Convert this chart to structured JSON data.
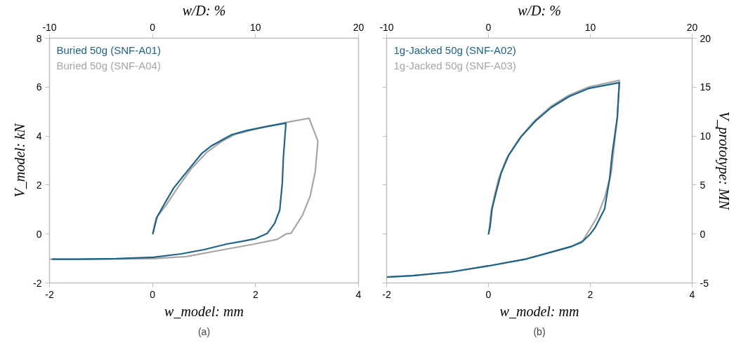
{
  "chart_data": [
    {
      "type": "line",
      "xlabel": "w_model: mm",
      "ylabel": "V_model: kN",
      "x2label": "w/D: %",
      "annotations": [
        "(a)"
      ],
      "legend": "top left",
      "xlim": [
        -2,
        4
      ],
      "xticks": [
        -2,
        0,
        2,
        4
      ],
      "ylim": [
        -2,
        8
      ],
      "yticks": [
        -2,
        0,
        2,
        4,
        6,
        8
      ],
      "x2lim": [
        -10,
        20
      ],
      "x2ticks": [
        -10,
        0,
        10,
        20
      ],
      "series": [
        {
          "name": "Buried 50g (SNF-A04)",
          "color": "#a6a6a6",
          "x": [
            0,
            0.07,
            0.26,
            0.51,
            0.75,
            1.05,
            1.34,
            1.59,
            1.98,
            2.59,
            3.04,
            3.21,
            3.16,
            3.06,
            2.91,
            2.69,
            2.59,
            2.42,
            1.98,
            1.25,
            0.66,
            0.02,
            -1.2,
            -1.99
          ],
          "values": [
            0,
            0.65,
            1.17,
            1.96,
            2.66,
            3.33,
            3.78,
            4.06,
            4.28,
            4.56,
            4.73,
            3.8,
            2.55,
            1.54,
            0.76,
            0.03,
            0,
            -0.22,
            -0.41,
            -0.69,
            -0.92,
            -1.01,
            -1.03,
            -1.03
          ]
        },
        {
          "name": "Buried 50g (SNF-A01)",
          "color": "#1f6387",
          "x": [
            0.01,
            0.04,
            0.09,
            0.21,
            0.41,
            0.71,
            0.95,
            1.15,
            1.39,
            1.54,
            1.83,
            2.23,
            2.59,
            2.54,
            2.52,
            2.47,
            2.37,
            2.23,
            2.0,
            1.74,
            1.44,
            1.0,
            0.56,
            0.02,
            -0.71,
            -1.45,
            -1.94
          ],
          "values": [
            0.03,
            0.31,
            0.7,
            1.15,
            1.88,
            2.66,
            3.28,
            3.61,
            3.89,
            4.06,
            4.23,
            4.4,
            4.53,
            3.11,
            2.1,
            0.98,
            0.43,
            0.03,
            -0.19,
            -0.3,
            -0.41,
            -0.64,
            -0.81,
            -0.95,
            -1.01,
            -1.03,
            -1.03
          ]
        }
      ]
    },
    {
      "type": "line",
      "xlabel": "w_model: mm",
      "y2label": "V_prototype: MN",
      "x2label": "w/D: %",
      "annotations": [
        "(b)"
      ],
      "legend": "top left",
      "xlim": [
        -2,
        4
      ],
      "xticks": [
        -2,
        0,
        2,
        4
      ],
      "y2lim": [
        -5,
        20
      ],
      "y2ticks": [
        -5,
        0,
        5,
        10,
        15,
        20
      ],
      "x2lim": [
        -10,
        20
      ],
      "x2ticks": [
        -10,
        0,
        10,
        20
      ],
      "series": [
        {
          "name": "1g-Jacked 50g (SNF-A03)",
          "color": "#a6a6a6",
          "axis": "y2",
          "x": [
            0.01,
            0.05,
            0.12,
            0.2,
            0.35,
            0.59,
            0.89,
            1.23,
            1.58,
            1.98,
            2.57,
            2.53,
            2.41,
            2.28,
            2.13,
            1.96,
            1.85,
            1.63,
            1.24,
            0.74,
            0,
            -0.75,
            -1.49,
            -2
          ],
          "values": [
            0.28,
            2.27,
            3.97,
            5.67,
            7.66,
            9.65,
            11.49,
            13.05,
            14.18,
            15.04,
            15.69,
            11.91,
            6.24,
            3.69,
            1.7,
            0.23,
            -0.7,
            -1.25,
            -1.84,
            -2.55,
            -3.26,
            -3.89,
            -4.26,
            -4.4
          ]
        },
        {
          "name": "1g-Jacked 50g (SNF-A02)",
          "color": "#1f6387",
          "axis": "y2",
          "x": [
            0,
            0.03,
            0.07,
            0.15,
            0.25,
            0.4,
            0.64,
            0.94,
            1.23,
            1.58,
            1.98,
            2.57,
            2.53,
            2.43,
            2.38,
            2.28,
            2.1,
            2.0,
            1.83,
            1.63,
            1.24,
            0.74,
            0,
            -0.75,
            -1.49,
            -2
          ],
          "values": [
            0,
            0.71,
            2.55,
            4.26,
            6.24,
            8.09,
            9.93,
            11.63,
            12.91,
            14.04,
            14.89,
            15.46,
            11.91,
            8.23,
            5.67,
            2.55,
            0.71,
            0,
            -0.85,
            -1.28,
            -1.84,
            -2.55,
            -3.26,
            -3.89,
            -4.26,
            -4.4
          ]
        }
      ]
    }
  ]
}
